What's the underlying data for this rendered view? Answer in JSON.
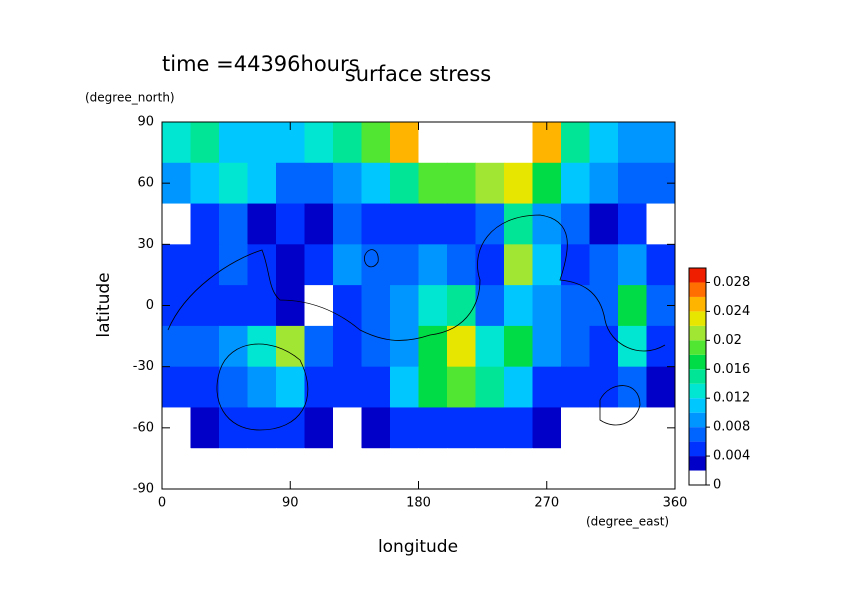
{
  "chart_data": {
    "type": "contour",
    "title": "surface stress",
    "subtitle": "time =44396hours",
    "x_label": "longitude",
    "x_unit": "(degree_east)",
    "y_label": "latitude",
    "y_unit": "(degree_north)",
    "xlim": [
      0,
      360
    ],
    "xticks": [
      0,
      90,
      180,
      270,
      360
    ],
    "ylim": [
      -90,
      90
    ],
    "yticks": [
      -90,
      -60,
      -30,
      0,
      30,
      60,
      90
    ],
    "x": [
      10,
      30,
      50,
      70,
      90,
      110,
      130,
      150,
      170,
      190,
      210,
      230,
      250,
      270,
      290,
      310,
      330,
      350
    ],
    "y": [
      80,
      60,
      40,
      20,
      0,
      -20,
      -40,
      -60,
      -80
    ],
    "z": [
      [
        0.012,
        0.014,
        0.01,
        0.01,
        0.01,
        0.012,
        0.014,
        0.018,
        0.024,
        0.03,
        0.032,
        0.032,
        0.03,
        0.024,
        0.014,
        0.01,
        0.008,
        0.008
      ],
      [
        0.008,
        0.01,
        0.012,
        0.01,
        0.006,
        0.006,
        0.008,
        0.01,
        0.014,
        0.018,
        0.018,
        0.02,
        0.022,
        0.016,
        0.01,
        0.008,
        0.006,
        0.006
      ],
      [
        0.001,
        0.004,
        0.006,
        0.003,
        0.004,
        0.002,
        0.006,
        0.004,
        0.004,
        0.004,
        0.004,
        0.006,
        0.014,
        0.008,
        0.006,
        0.002,
        0.004,
        0.001
      ],
      [
        0.004,
        0.004,
        0.006,
        0.004,
        0.003,
        0.004,
        0.008,
        0.006,
        0.006,
        0.008,
        0.006,
        0.004,
        0.02,
        0.01,
        0.004,
        0.006,
        0.008,
        0.004
      ],
      [
        0.004,
        0.004,
        0.004,
        0.004,
        0.002,
        0.001,
        0.004,
        0.006,
        0.008,
        0.012,
        0.014,
        0.006,
        0.01,
        0.008,
        0.006,
        0.006,
        0.016,
        0.006
      ],
      [
        0.006,
        0.006,
        0.008,
        0.012,
        0.02,
        0.006,
        0.004,
        0.006,
        0.008,
        0.016,
        0.022,
        0.012,
        0.016,
        0.008,
        0.006,
        0.004,
        0.012,
        0.004
      ],
      [
        0.004,
        0.004,
        0.006,
        0.008,
        0.01,
        0.004,
        0.004,
        0.004,
        0.01,
        0.016,
        0.018,
        0.014,
        0.01,
        0.004,
        0.004,
        0.004,
        0.006,
        0.002
      ],
      [
        0.001,
        0.002,
        0.004,
        0.004,
        0.004,
        0.002,
        0.001,
        0.003,
        0.004,
        0.004,
        0.004,
        0.004,
        0.004,
        0.003,
        0.001,
        0.001,
        0.001,
        0.001
      ],
      [
        0,
        0,
        0,
        0,
        0,
        0,
        0,
        0,
        0,
        0,
        0,
        0,
        0,
        0,
        0,
        0,
        0,
        0
      ]
    ],
    "levels": [
      0,
      0.002,
      0.004,
      0.006,
      0.008,
      0.01,
      0.012,
      0.014,
      0.016,
      0.018,
      0.02,
      0.022,
      0.024,
      0.026,
      0.028,
      0.03
    ],
    "colors": [
      "#ffffff",
      "#0000c8",
      "#0032ff",
      "#0064ff",
      "#0096ff",
      "#00c8ff",
      "#00e6d2",
      "#00e696",
      "#00dc46",
      "#50e632",
      "#a0e632",
      "#e6e600",
      "#ffb400",
      "#ff6e00",
      "#f01e00"
    ],
    "over_color": "#ffffff",
    "colorbar_ticks": [
      0,
      0.004,
      0.008,
      0.012,
      0.016,
      0.02,
      0.024,
      0.028
    ]
  }
}
